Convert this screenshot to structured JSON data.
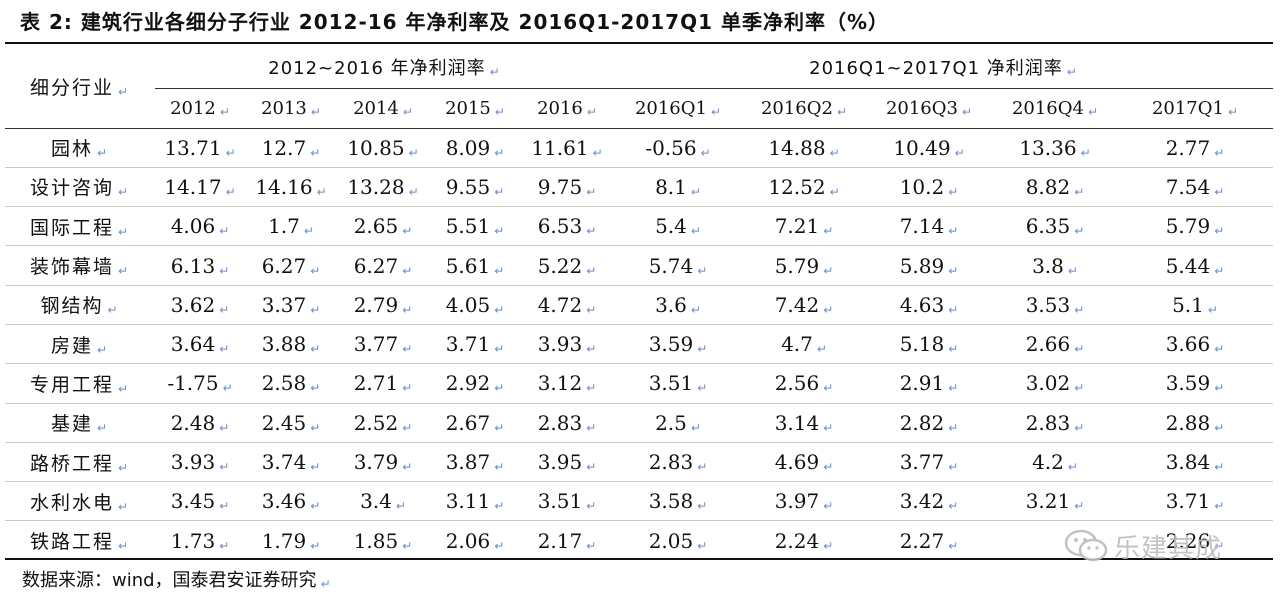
{
  "title": "表  2: 建筑行业各细分子行业 2012-16 年净利率及 2016Q1-2017Q1 单季净利率（%）",
  "table": {
    "row_header": "细分行业",
    "group_annual": "2012~2016 年净利润率",
    "group_quarterly": "2016Q1~2017Q1 净利润率",
    "columns": [
      "2012",
      "2013",
      "2014",
      "2015",
      "2016",
      "2016Q1",
      "2016Q2",
      "2016Q3",
      "2016Q4",
      "2017Q1"
    ],
    "rows": [
      {
        "name": "园林",
        "values": [
          "13.71",
          "12.7",
          "10.85",
          "8.09",
          "11.61",
          "-0.56",
          "14.88",
          "10.49",
          "13.36",
          "2.77"
        ]
      },
      {
        "name": "设计咨询",
        "values": [
          "14.17",
          "14.16",
          "13.28",
          "9.55",
          "9.75",
          "8.1",
          "12.52",
          "10.2",
          "8.82",
          "7.54"
        ]
      },
      {
        "name": "国际工程",
        "values": [
          "4.06",
          "1.7",
          "2.65",
          "5.51",
          "6.53",
          "5.4",
          "7.21",
          "7.14",
          "6.35",
          "5.79"
        ]
      },
      {
        "name": "装饰幕墙",
        "values": [
          "6.13",
          "6.27",
          "6.27",
          "5.61",
          "5.22",
          "5.74",
          "5.79",
          "5.89",
          "3.8",
          "5.44"
        ]
      },
      {
        "name": "钢结构",
        "values": [
          "3.62",
          "3.37",
          "2.79",
          "4.05",
          "4.72",
          "3.6",
          "7.42",
          "4.63",
          "3.53",
          "5.1"
        ]
      },
      {
        "name": "房建",
        "values": [
          "3.64",
          "3.88",
          "3.77",
          "3.71",
          "3.93",
          "3.59",
          "4.7",
          "5.18",
          "2.66",
          "3.66"
        ]
      },
      {
        "name": "专用工程",
        "values": [
          "-1.75",
          "2.58",
          "2.71",
          "2.92",
          "3.12",
          "3.51",
          "2.56",
          "2.91",
          "3.02",
          "3.59"
        ]
      },
      {
        "name": "基建",
        "values": [
          "2.48",
          "2.45",
          "2.52",
          "2.67",
          "2.83",
          "2.5",
          "3.14",
          "2.82",
          "2.83",
          "2.88"
        ]
      },
      {
        "name": "路桥工程",
        "values": [
          "3.93",
          "3.74",
          "3.79",
          "3.87",
          "3.95",
          "2.83",
          "4.69",
          "3.77",
          "4.2",
          "3.84"
        ]
      },
      {
        "name": "水利水电",
        "values": [
          "3.45",
          "3.46",
          "3.4",
          "3.11",
          "3.51",
          "3.58",
          "3.97",
          "3.42",
          "3.21",
          "3.71"
        ]
      },
      {
        "name": "铁路工程",
        "values": [
          "1.73",
          "1.79",
          "1.85",
          "2.06",
          "2.17",
          "2.05",
          "2.24",
          "2.27",
          "",
          "2.26"
        ]
      }
    ]
  },
  "source": "数据来源：wind，国泰君安证券研究",
  "watermark": "乐建其成",
  "colors": {
    "rule": "#111111",
    "row_divider": "#c9c9c9",
    "return_mark": "#6a8ec7",
    "watermark": "#bdbdbd"
  }
}
